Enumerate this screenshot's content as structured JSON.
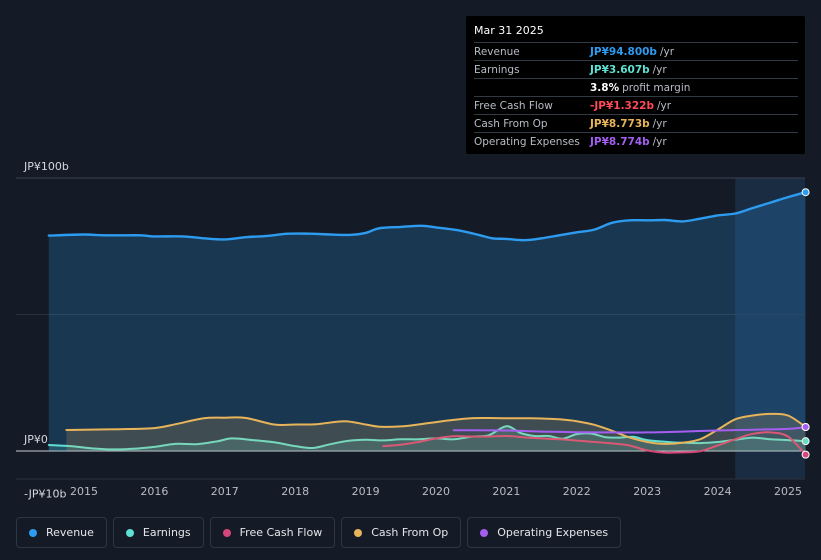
{
  "tooltip": {
    "date": "Mar 31 2025",
    "rows": [
      {
        "label": "Revenue",
        "value": "JP¥94.800b",
        "unit": "/yr"
      },
      {
        "label": "Earnings",
        "value": "JP¥3.607b",
        "unit": "/yr"
      },
      {
        "label": "",
        "value": "3.8%",
        "unit": "profit margin"
      },
      {
        "label": "Free Cash Flow",
        "value": "-JP¥1.322b",
        "unit": "/yr"
      },
      {
        "label": "Cash From Op",
        "value": "JP¥8.773b",
        "unit": "/yr"
      },
      {
        "label": "Operating Expenses",
        "value": "JP¥8.774b",
        "unit": "/yr"
      }
    ]
  },
  "legend": [
    {
      "label": "Revenue",
      "color": "#2d9cf0"
    },
    {
      "label": "Earnings",
      "color": "#5ee0d2"
    },
    {
      "label": "Free Cash Flow",
      "color": "#d6457a"
    },
    {
      "label": "Cash From Op",
      "color": "#e8b45a"
    },
    {
      "label": "Operating Expenses",
      "color": "#a45ff0"
    }
  ],
  "chart_data": {
    "type": "line",
    "title": "",
    "y_unit": "JP¥b",
    "ylim": [
      -10,
      100
    ],
    "y_tick_labels": [
      {
        "value": 100,
        "label": "JP¥100b"
      },
      {
        "value": 0,
        "label": "JP¥0"
      },
      {
        "value": -10,
        "label": "-JP¥10b"
      }
    ],
    "x_ticks": [
      {
        "value": 2015,
        "label": "2015"
      },
      {
        "value": 2016,
        "label": "2016"
      },
      {
        "value": 2017,
        "label": "2017"
      },
      {
        "value": 2018,
        "label": "2018"
      },
      {
        "value": 2019,
        "label": "2019"
      },
      {
        "value": 2020,
        "label": "2020"
      },
      {
        "value": 2021,
        "label": "2021"
      },
      {
        "value": 2022,
        "label": "2022"
      },
      {
        "value": 2023,
        "label": "2023"
      },
      {
        "value": 2024,
        "label": "2024"
      },
      {
        "value": 2025,
        "label": "2025"
      }
    ],
    "xlim": [
      2014.5,
      2025.25
    ],
    "highlight_from": 2024.25,
    "series": [
      {
        "name": "Revenue",
        "color": "#2d9cf0",
        "fill": true,
        "x": [
          2014.5,
          2015.0,
          2015.3,
          2015.8,
          2016.0,
          2016.4,
          2016.7,
          2017.0,
          2017.3,
          2017.6,
          2017.9,
          2018.2,
          2018.5,
          2018.8,
          2019.0,
          2019.2,
          2019.5,
          2019.8,
          2020.0,
          2020.3,
          2020.6,
          2020.8,
          2021.0,
          2021.25,
          2021.5,
          2021.75,
          2022.0,
          2022.25,
          2022.5,
          2022.75,
          2023.0,
          2023.25,
          2023.5,
          2023.75,
          2024.0,
          2024.25,
          2024.5,
          2024.75,
          2025.0,
          2025.25
        ],
        "y": [
          78.9,
          79.3,
          79.0,
          79.0,
          78.6,
          78.6,
          77.9,
          77.5,
          78.3,
          78.8,
          79.6,
          79.6,
          79.3,
          79.2,
          79.9,
          81.6,
          82.1,
          82.5,
          81.9,
          80.9,
          79.2,
          77.9,
          77.7,
          77.2,
          77.9,
          79.0,
          80.1,
          81.1,
          83.6,
          84.5,
          84.5,
          84.6,
          84.1,
          85.1,
          86.3,
          87.0,
          89.0,
          91.0,
          93.0,
          94.8
        ]
      },
      {
        "name": "Earnings",
        "color": "#5ee0d2",
        "fill": true,
        "x": [
          2014.5,
          2014.8,
          2015.1,
          2015.4,
          2015.7,
          2016.0,
          2016.3,
          2016.6,
          2016.9,
          2017.1,
          2017.4,
          2017.7,
          2018.0,
          2018.25,
          2018.5,
          2018.75,
          2019.0,
          2019.25,
          2019.5,
          2019.75,
          2020.0,
          2020.25,
          2020.5,
          2020.75,
          2021.0,
          2021.2,
          2021.4,
          2021.6,
          2021.8,
          2022.0,
          2022.2,
          2022.4,
          2022.6,
          2022.8,
          2023.0,
          2023.25,
          2023.5,
          2023.75,
          2024.0,
          2024.25,
          2024.5,
          2024.75,
          2025.0,
          2025.25
        ],
        "y": [
          2.2,
          1.8,
          1.0,
          0.6,
          0.8,
          1.5,
          2.6,
          2.5,
          3.6,
          4.6,
          4.0,
          3.2,
          1.8,
          1.1,
          2.5,
          3.7,
          4.1,
          3.9,
          4.3,
          4.3,
          4.6,
          4.3,
          5.2,
          5.8,
          9.1,
          6.6,
          5.5,
          5.5,
          4.5,
          6.2,
          6.4,
          5.1,
          4.9,
          5.2,
          4.0,
          3.4,
          3.0,
          2.9,
          3.3,
          4.1,
          4.9,
          4.3,
          4.0,
          3.607
        ]
      },
      {
        "name": "Free Cash Flow",
        "color": "#d6457a",
        "fill": false,
        "x": [
          2019.25,
          2019.5,
          2019.75,
          2020.0,
          2020.25,
          2020.5,
          2020.75,
          2021.0,
          2021.25,
          2021.5,
          2021.75,
          2022.0,
          2022.25,
          2022.5,
          2022.75,
          2023.0,
          2023.25,
          2023.5,
          2023.75,
          2024.0,
          2024.25,
          2024.5,
          2024.75,
          2025.0,
          2025.25
        ],
        "y": [
          1.8,
          2.3,
          3.3,
          4.6,
          5.4,
          5.3,
          5.3,
          5.5,
          5.0,
          4.6,
          4.3,
          3.8,
          3.3,
          2.8,
          2.0,
          0.2,
          -0.6,
          -0.5,
          -0.1,
          2.0,
          4.3,
          6.3,
          6.8,
          5.3,
          -1.322
        ]
      },
      {
        "name": "Cash From Op",
        "color": "#e8b45a",
        "fill": true,
        "x": [
          2014.75,
          2015.0,
          2015.5,
          2016.0,
          2016.3,
          2016.7,
          2017.0,
          2017.3,
          2017.7,
          2018.0,
          2018.3,
          2018.7,
          2019.0,
          2019.2,
          2019.5,
          2019.75,
          2020.0,
          2020.25,
          2020.5,
          2020.75,
          2021.0,
          2021.25,
          2021.5,
          2021.75,
          2022.0,
          2022.25,
          2022.5,
          2022.75,
          2023.0,
          2023.25,
          2023.5,
          2023.75,
          2024.0,
          2024.25,
          2024.5,
          2024.75,
          2025.0,
          2025.25
        ],
        "y": [
          7.7,
          7.8,
          8.0,
          8.4,
          9.8,
          12.0,
          12.2,
          12.1,
          9.7,
          9.7,
          9.8,
          10.9,
          9.7,
          8.9,
          9.0,
          9.7,
          10.6,
          11.4,
          12.0,
          12.1,
          12.0,
          12.0,
          11.9,
          11.6,
          10.9,
          9.6,
          7.4,
          5.0,
          3.3,
          2.6,
          3.0,
          4.3,
          7.8,
          11.6,
          13.0,
          13.6,
          13.0,
          8.773
        ]
      },
      {
        "name": "Operating Expenses",
        "color": "#a45ff0",
        "fill": false,
        "x": [
          2020.25,
          2020.5,
          2021.0,
          2021.5,
          2022.0,
          2022.5,
          2023.0,
          2023.5,
          2024.0,
          2024.5,
          2025.0,
          2025.25
        ],
        "y": [
          7.6,
          7.6,
          7.5,
          7.1,
          6.9,
          6.8,
          6.8,
          7.1,
          7.5,
          7.8,
          8.1,
          8.774
        ]
      }
    ]
  }
}
